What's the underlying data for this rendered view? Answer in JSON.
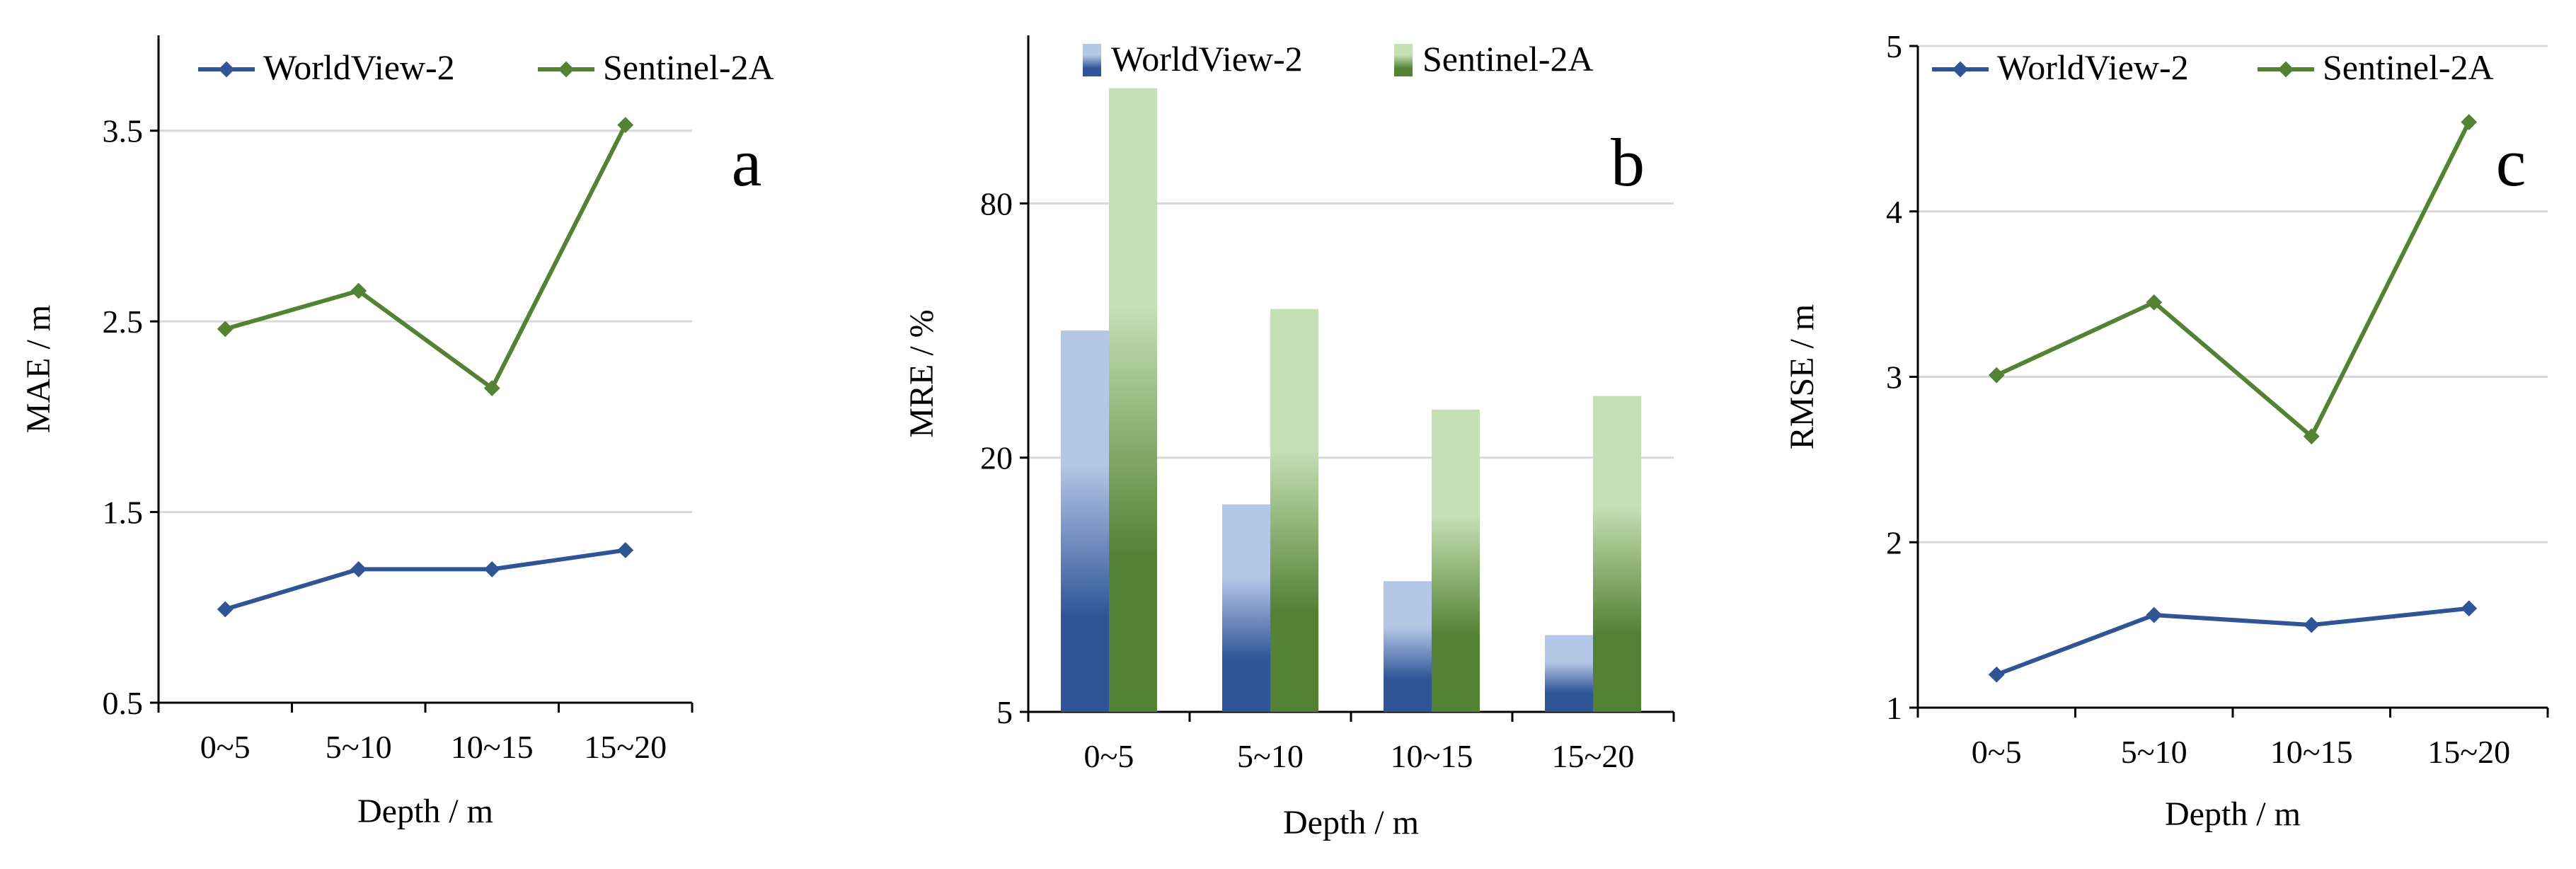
{
  "colors": {
    "wv2": "#2F5597",
    "s2a": "#548235",
    "grid": "#D9D9D9",
    "axis": "#000000"
  },
  "chart_data": [
    {
      "id": "a",
      "type": "line",
      "panel_label": "a",
      "categories": [
        "0~5",
        "5~10",
        "10~15",
        "15~20"
      ],
      "series": [
        {
          "name": "WorldView-2",
          "values": [
            0.99,
            1.2,
            1.2,
            1.3
          ]
        },
        {
          "name": "Sentinel-2A",
          "values": [
            2.46,
            2.66,
            2.15,
            3.53
          ]
        }
      ],
      "xlabel": "Depth / m",
      "ylabel": "MAE / m",
      "ylim": [
        0.5,
        4.0
      ],
      "yticks": [
        0.5,
        1.5,
        2.5,
        3.5
      ],
      "ytick_labels": [
        "0.5",
        "1.5",
        "2.5",
        "3.5"
      ],
      "grid": true,
      "legend": "top"
    },
    {
      "id": "b",
      "type": "bar",
      "panel_label": "b",
      "yscale": "log",
      "categories": [
        "0~5",
        "5~10",
        "10~15",
        "15~20"
      ],
      "series": [
        {
          "name": "WorldView-2",
          "values": [
            40,
            15.5,
            10.2,
            7.6
          ]
        },
        {
          "name": "Sentinel-2A",
          "values": [
            150,
            45,
            26,
            28
          ]
        }
      ],
      "xlabel": "Depth / m",
      "ylabel": "MRE / %",
      "ylim": [
        5,
        200
      ],
      "yticks": [
        5,
        20,
        80
      ],
      "ytick_labels": [
        "5",
        "20",
        "80"
      ],
      "grid": true,
      "legend": "top"
    },
    {
      "id": "c",
      "type": "line",
      "panel_label": "c",
      "categories": [
        "0~5",
        "5~10",
        "10~15",
        "15~20"
      ],
      "series": [
        {
          "name": "WorldView-2",
          "values": [
            1.2,
            1.56,
            1.5,
            1.6
          ]
        },
        {
          "name": "Sentinel-2A",
          "values": [
            3.01,
            3.45,
            2.64,
            4.54
          ]
        }
      ],
      "xlabel": "Depth / m",
      "ylabel": "RMSE / m",
      "ylim": [
        1,
        5
      ],
      "yticks": [
        1,
        2,
        3,
        4,
        5
      ],
      "ytick_labels": [
        "1",
        "2",
        "3",
        "4",
        "5"
      ],
      "grid": true,
      "legend": "top"
    }
  ]
}
